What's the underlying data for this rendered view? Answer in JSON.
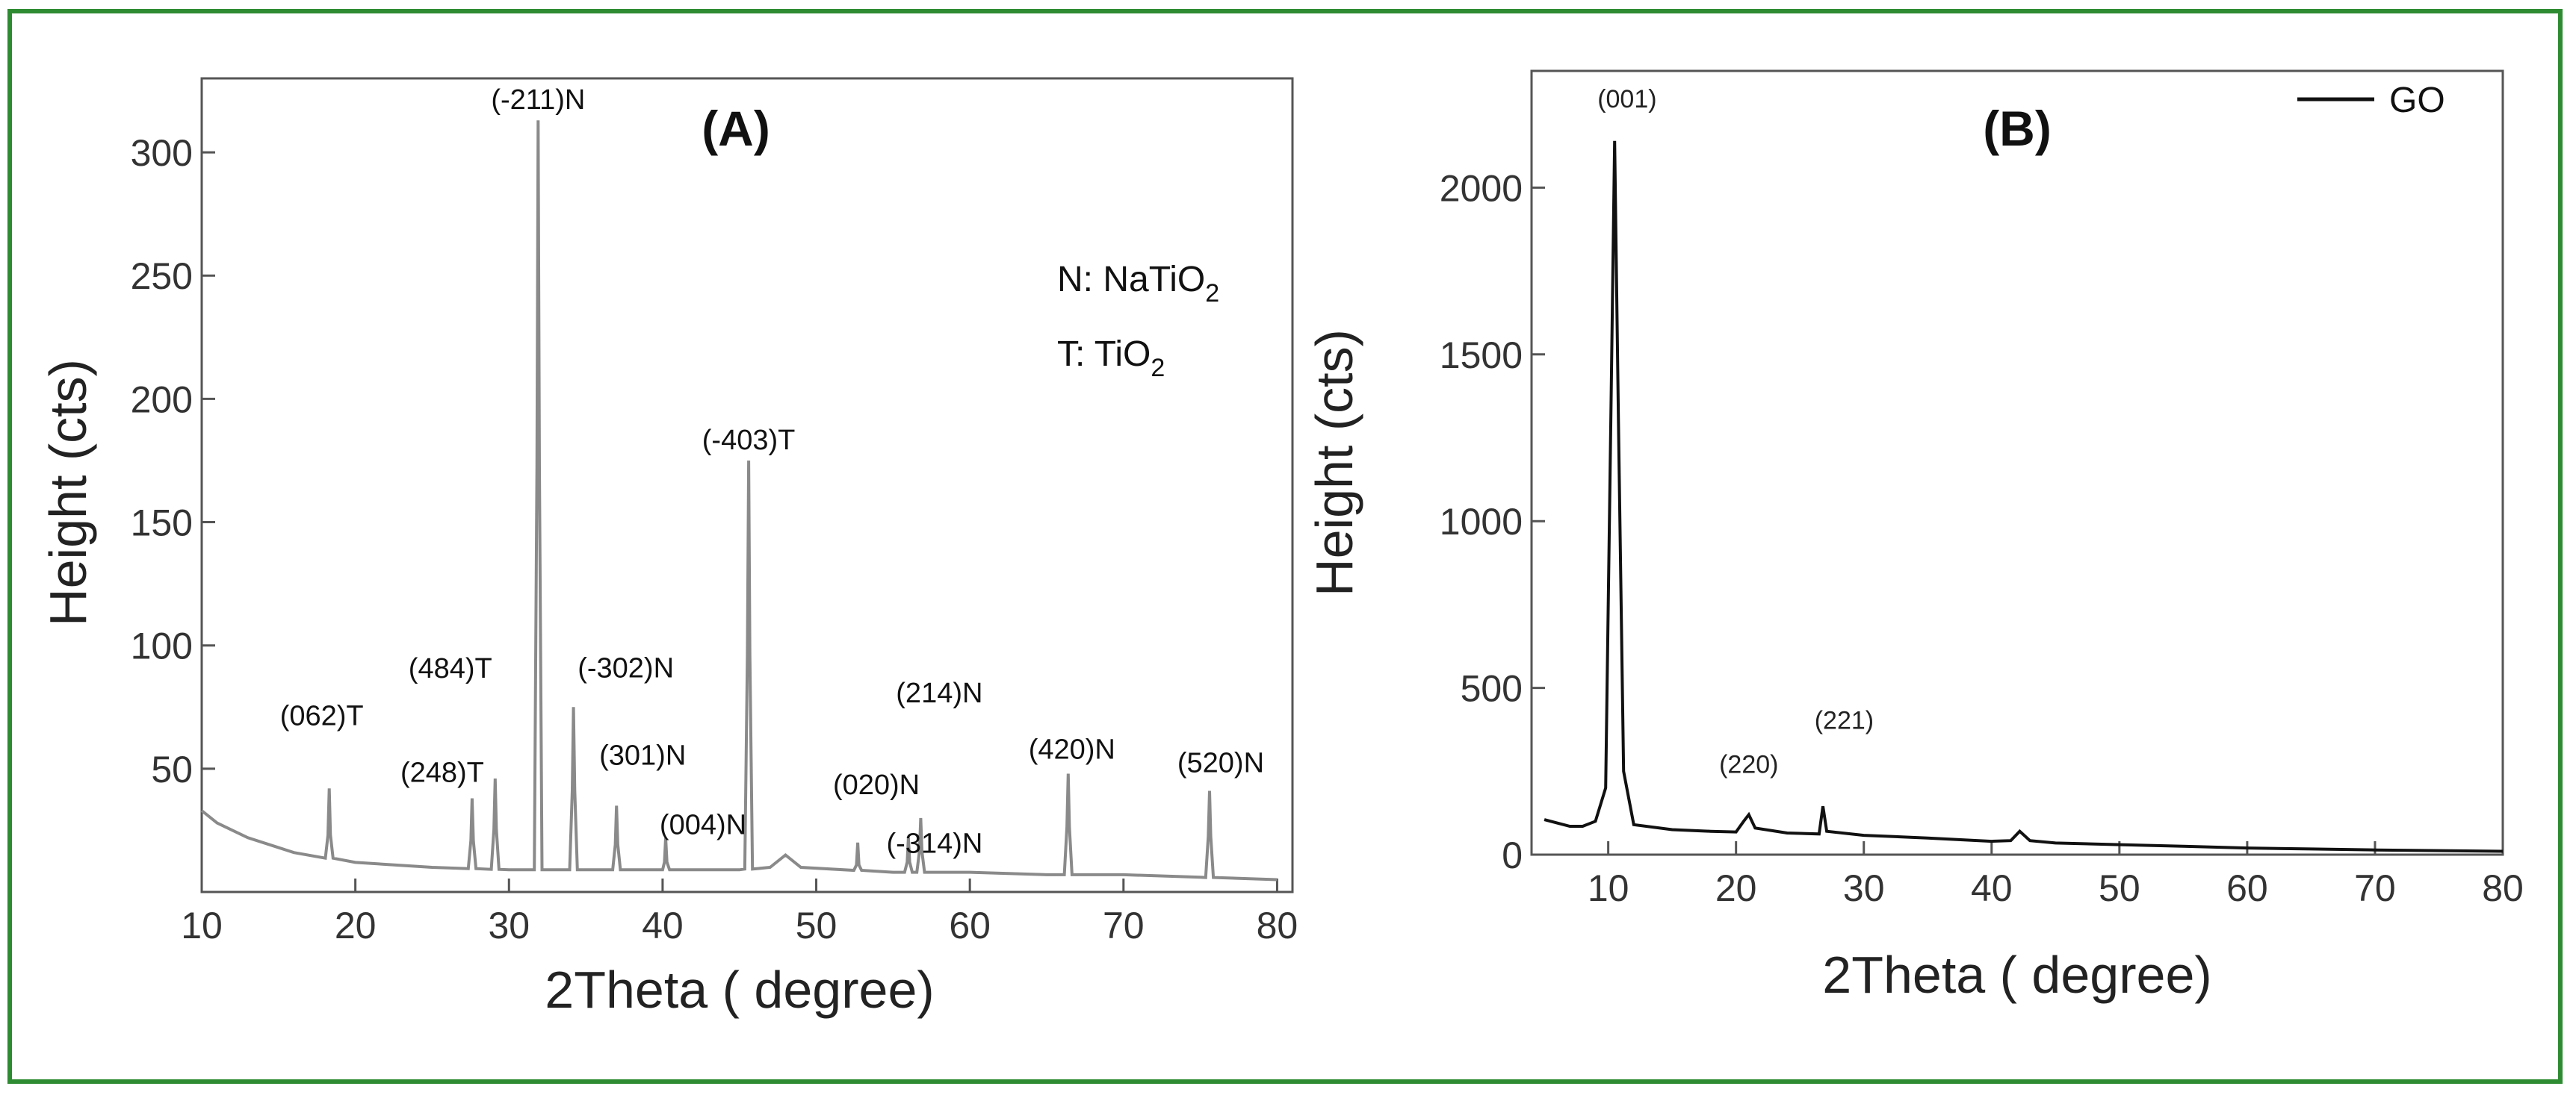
{
  "frame_color": "#2e8b32",
  "chart_data": [
    {
      "type": "line",
      "panel_label": "(A)",
      "xlabel": "2Theta ( degree)",
      "ylabel": "Height (cts)",
      "xlim": [
        10,
        81
      ],
      "ylim": [
        0,
        330
      ],
      "xticks": [
        10,
        20,
        30,
        40,
        50,
        60,
        70,
        80
      ],
      "yticks": [
        50,
        100,
        150,
        200,
        250,
        300
      ],
      "color": "#8a8a8a",
      "legend_text": {
        "line1_prefix": "N: NaTiO",
        "line1_sub": "2",
        "line2_prefix": "T: TiO",
        "line2_sub": "2"
      },
      "baseline": [
        [
          10,
          33
        ],
        [
          11,
          28
        ],
        [
          13,
          22
        ],
        [
          16,
          16
        ],
        [
          20,
          12
        ],
        [
          25,
          10
        ],
        [
          30,
          9
        ],
        [
          35,
          9
        ],
        [
          40,
          9
        ],
        [
          45,
          9
        ],
        [
          47,
          10
        ],
        [
          48,
          15
        ],
        [
          49,
          10
        ],
        [
          55,
          8
        ],
        [
          60,
          8
        ],
        [
          65,
          7
        ],
        [
          70,
          7
        ],
        [
          75,
          6
        ],
        [
          80,
          5
        ]
      ],
      "peaks": [
        {
          "x": 18.3,
          "y": 42,
          "label": "(062)T"
        },
        {
          "x": 27.6,
          "y": 38,
          "label": "(248)T"
        },
        {
          "x": 29.1,
          "y": 46,
          "label": "(484)T"
        },
        {
          "x": 31.9,
          "y": 313,
          "label": "(-211)N"
        },
        {
          "x": 34.2,
          "y": 75,
          "label": "(-302)N"
        },
        {
          "x": 37.0,
          "y": 35,
          "label": "(301)N"
        },
        {
          "x": 40.2,
          "y": 22,
          "label": "(004)N"
        },
        {
          "x": 45.6,
          "y": 175,
          "label": "(-403)T"
        },
        {
          "x": 52.7,
          "y": 20,
          "label": "(020)N"
        },
        {
          "x": 56.0,
          "y": 22,
          "label": "(-314)N"
        },
        {
          "x": 56.8,
          "y": 30,
          "label": "(214)N"
        },
        {
          "x": 66.4,
          "y": 48,
          "label": "(420)N"
        },
        {
          "x": 75.6,
          "y": 41,
          "label": "(520)N"
        }
      ]
    },
    {
      "type": "line",
      "panel_label": "(B)",
      "xlabel": "2Theta ( degree)",
      "ylabel": "Height (cts)",
      "xlim": [
        4,
        80
      ],
      "ylim": [
        0,
        2350
      ],
      "xticks": [
        10,
        20,
        30,
        40,
        50,
        60,
        70,
        80
      ],
      "yticks": [
        0,
        500,
        1000,
        1500,
        2000
      ],
      "color": "#111111",
      "series": [
        {
          "name": "GO"
        }
      ],
      "baseline": [
        [
          5,
          105
        ],
        [
          6,
          95
        ],
        [
          7,
          85
        ],
        [
          8,
          85
        ],
        [
          9,
          100
        ],
        [
          9.8,
          200
        ],
        [
          10.2,
          1300
        ],
        [
          10.5,
          2140
        ],
        [
          10.8,
          1300
        ],
        [
          11.2,
          250
        ],
        [
          12,
          90
        ],
        [
          15,
          75
        ],
        [
          18,
          70
        ],
        [
          20,
          68
        ],
        [
          20.6,
          100
        ],
        [
          21,
          120
        ],
        [
          21.5,
          80
        ],
        [
          24,
          65
        ],
        [
          26.5,
          62
        ],
        [
          26.8,
          145
        ],
        [
          27.1,
          70
        ],
        [
          30,
          58
        ],
        [
          35,
          50
        ],
        [
          40,
          40
        ],
        [
          41.5,
          42
        ],
        [
          42.2,
          70
        ],
        [
          43,
          42
        ],
        [
          45,
          35
        ],
        [
          50,
          30
        ],
        [
          55,
          25
        ],
        [
          60,
          20
        ],
        [
          65,
          17
        ],
        [
          70,
          14
        ],
        [
          75,
          12
        ],
        [
          80,
          10
        ]
      ],
      "peak_labels": [
        {
          "x": 10.6,
          "y": 2200,
          "label": "(001)"
        },
        {
          "x": 21.0,
          "y": 200,
          "label": "(220)"
        },
        {
          "x": 27.0,
          "y": 310,
          "label": "(221)"
        }
      ]
    }
  ]
}
